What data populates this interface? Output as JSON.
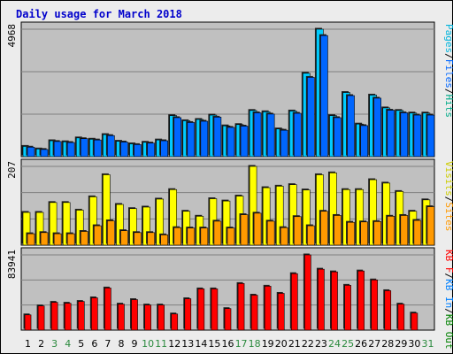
{
  "chart_data": {
    "type": "bar",
    "title": "Daily usage for March 2018",
    "categories": [
      "1",
      "2",
      "3",
      "4",
      "5",
      "6",
      "7",
      "8",
      "9",
      "10",
      "11",
      "12",
      "13",
      "14",
      "15",
      "16",
      "17",
      "18",
      "19",
      "20",
      "21",
      "22",
      "23",
      "24",
      "25",
      "26",
      "27",
      "28",
      "29",
      "30",
      "31"
    ],
    "weekend_days": [
      "3",
      "4",
      "10",
      "11",
      "17",
      "18",
      "24",
      "25",
      "31"
    ],
    "colors": {
      "day_label": "#000000",
      "weekend_label": "#2b8a3e",
      "hits": "#00ccff",
      "files": "#0066ff",
      "pages": "#00b4dc",
      "visits": "#ffff00",
      "sites": "#ff9900",
      "kbf": "#ff0000",
      "kbin": "#0080ff",
      "kbout": "#008000",
      "plot_bg": "#c0c0c0",
      "grid": "#808080"
    },
    "panels": [
      {
        "ymax_label": "4968",
        "ylim": [
          0,
          4968
        ],
        "legend": [
          {
            "text": "Pages",
            "color": "#00b4dc"
          },
          {
            "text": "/",
            "color": "#000000"
          },
          {
            "text": "Files",
            "color": "#0066ff"
          },
          {
            "text": "/",
            "color": "#000000"
          },
          {
            "text": "Hits",
            "color": "#00aa88"
          }
        ],
        "series": [
          {
            "key": "hits",
            "values": [
              400,
              300,
              620,
              580,
              730,
              680,
              860,
              600,
              500,
              560,
              650,
              1600,
              1400,
              1450,
              1620,
              1200,
              1250,
              1800,
              1750,
              1080,
              1780,
              3250,
              4968,
              1600,
              2500,
              1270,
              2400,
              1900,
              1800,
              1700,
              1700
            ]
          },
          {
            "key": "files",
            "values": [
              370,
              280,
              590,
              550,
              700,
              650,
              820,
              570,
              470,
              530,
              620,
              1520,
              1330,
              1380,
              1540,
              1140,
              1190,
              1710,
              1660,
              1030,
              1690,
              3090,
              4720,
              1520,
              2380,
              1210,
              2280,
              1810,
              1710,
              1620,
              1620
            ]
          }
        ]
      },
      {
        "ymax_label": "207",
        "ylim": [
          0,
          207
        ],
        "legend": [
          {
            "text": "Visits",
            "color": "#cccc00"
          },
          {
            "text": "/",
            "color": "#000000"
          },
          {
            "text": "Sites",
            "color": "#ff9900"
          }
        ],
        "series": [
          {
            "key": "visits",
            "values": [
              86,
              86,
              112,
              112,
              92,
              127,
              185,
              107,
              96,
              100,
              121,
              146,
              89,
              76,
              122,
              116,
              129,
              207,
              151,
              155,
              159,
              145,
              185,
              190,
              146,
              146,
              172,
              163,
              141,
              89,
              119
            ]
          },
          {
            "key": "sites",
            "values": [
              30,
              33,
              30,
              30,
              36,
              51,
              64,
              38,
              33,
              33,
              27,
              46,
              45,
              45,
              63,
              45,
              80,
              84,
              63,
              46,
              75,
              51,
              89,
              78,
              60,
              61,
              62,
              76,
              78,
              65,
              101
            ]
          }
        ]
      },
      {
        "ymax_label": "83941",
        "ylim": [
          0,
          83941
        ],
        "legend": [
          {
            "text": "KB F",
            "color": "#ff0000"
          },
          {
            "text": "/",
            "color": "#000000"
          },
          {
            "text": "KB In",
            "color": "#0080ff"
          },
          {
            "text": "/",
            "color": "#000000"
          },
          {
            "text": "KB Out",
            "color": "#008000"
          }
        ],
        "series": [
          {
            "key": "kbf",
            "values": [
              17000,
              27000,
              31000,
              30000,
              32000,
              36000,
              47000,
              29000,
              34000,
              28000,
              28000,
              18000,
              35000,
              46000,
              46000,
              24000,
              52000,
              39000,
              49000,
              41000,
              63000,
              83941,
              68000,
              65000,
              50000,
              66000,
              56000,
              44000,
              29000,
              19000,
              0
            ]
          }
        ]
      }
    ]
  }
}
